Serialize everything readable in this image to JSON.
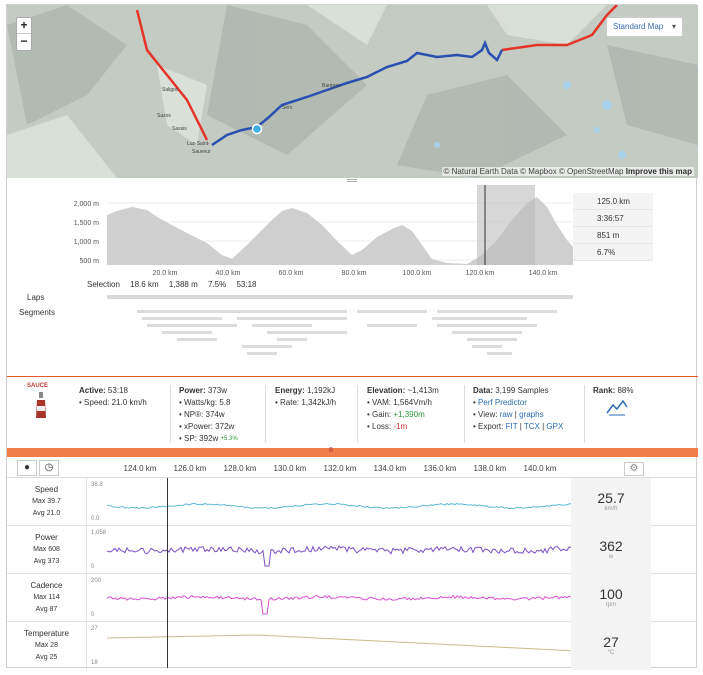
{
  "map": {
    "style_selector": "Standard Map",
    "zoom_in": "+",
    "zoom_out": "−",
    "attribution": "© Natural Earth Data © Mapbox © OpenStreetMap",
    "improve": "Improve this map",
    "places": [
      "Saligos",
      "Sazos",
      "Sassis",
      "Luz-Saint-Sauveur",
      "Sers",
      "Barèges"
    ]
  },
  "elevation": {
    "y_ticks": [
      "2,000 m",
      "1,500 m",
      "1,000 m",
      "500 m"
    ],
    "x_ticks": [
      "20.0 km",
      "40.0 km",
      "60.0 km",
      "80.0 km",
      "100.0 km",
      "120.0 km",
      "140.0 km"
    ],
    "stats": [
      "125.0 km",
      "3:36:57",
      "851 m",
      "6.7%"
    ],
    "selection_label": "Selection",
    "selection_values": [
      "18.6 km",
      "1,388 m",
      "7.5%",
      "53:18"
    ],
    "laps_label": "Laps",
    "segments_label": "Segments"
  },
  "summary": {
    "logo_text": "SAUCE",
    "active": {
      "label": "Active:",
      "value": "53:18",
      "speed_label": "Speed:",
      "speed": "21.0",
      "speed_unit": "km/h"
    },
    "power": {
      "label": "Power:",
      "value": "373",
      "unit": "w",
      "wkg_label": "Watts/kg:",
      "wkg": "5.8",
      "np_label": "NP®:",
      "np": "374",
      "xp_label": "xPower:",
      "xp": "372",
      "sp_label": "SP:",
      "sp": "392",
      "sp_delta": "+5.3%"
    },
    "energy": {
      "label": "Energy:",
      "value": "1,192",
      "unit": "kJ",
      "rate_label": "Rate:",
      "rate": "1,342",
      "rate_unit": "kJ/h"
    },
    "elevation": {
      "label": "Elevation:",
      "value": "~1,413",
      "unit": "m",
      "vam_label": "VAM:",
      "vam": "1,564",
      "vam_unit": "Vm/h",
      "gain_label": "Gain:",
      "gain": "+1,390",
      "gain_unit": "m",
      "loss_label": "Loss:",
      "loss": "-1",
      "loss_unit": "m"
    },
    "data": {
      "label": "Data:",
      "value": "3,199 Samples",
      "perf": "Perf Predictor",
      "view_label": "View:",
      "raw": "raw",
      "graphs": "graphs",
      "export_label": "Export:",
      "fit": "FIT",
      "tcx": "TCX",
      "gpx": "GPX"
    },
    "rank": {
      "label": "Rank:",
      "value": "88%"
    }
  },
  "timeline": {
    "marker": "8",
    "x_ticks": [
      "124.0 km",
      "126.0 km",
      "128.0 km",
      "130.0 km",
      "132.0 km",
      "134.0 km",
      "136.0 km",
      "138.0 km",
      "140.0 km"
    ]
  },
  "streams": [
    {
      "name": "Speed",
      "max": "Max 39.7",
      "avg": "Avg 21.0",
      "ymax": "38.8",
      "ymin": "0.0",
      "current": "25.7",
      "unit": "km/h",
      "color": "#5fb8d4"
    },
    {
      "name": "Power",
      "max": "Max 608",
      "avg": "Avg 373",
      "ymax": "1,058",
      "ymin": "0",
      "current": "362",
      "unit": "w",
      "color": "#7b4fc4"
    },
    {
      "name": "Cadence",
      "max": "Max 114",
      "avg": "Avg 87",
      "ymax": "200",
      "ymin": "0",
      "current": "100",
      "unit": "rpm",
      "color": "#d94fd4"
    },
    {
      "name": "Temperature",
      "max": "Max 28",
      "avg": "Avg 25",
      "ymax": "27",
      "ymin": "18",
      "current": "27",
      "unit": "°C",
      "color": "#c9b98a"
    }
  ]
}
